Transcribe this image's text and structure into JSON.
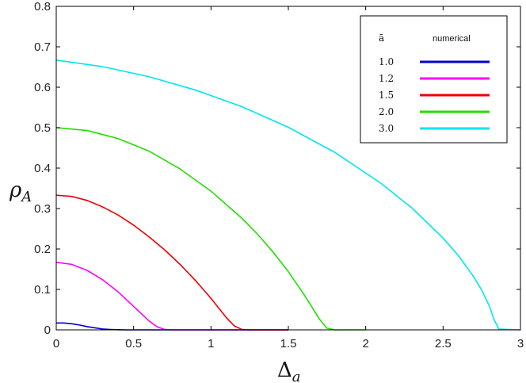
{
  "chart_data": {
    "type": "line",
    "xlabel_main": "Δ",
    "xlabel_sub": "a",
    "ylabel_main": "ρ",
    "ylabel_sub": "A",
    "xlim": [
      0,
      3
    ],
    "ylim": [
      0,
      0.8
    ],
    "xticks": [
      0,
      0.5,
      1,
      1.5,
      2,
      2.5,
      3
    ],
    "yticks": [
      0,
      0.1,
      0.2,
      0.3,
      0.4,
      0.5,
      0.6,
      0.7,
      0.8
    ],
    "x_tick_labels": [
      "0",
      "0.5",
      "1",
      "1.5",
      "2",
      "2.5",
      "3"
    ],
    "y_tick_labels": [
      "0",
      "0.1",
      "0.2",
      "0.3",
      "0.4",
      "0.5",
      "0.6",
      "0.7",
      "0.8"
    ],
    "grid": false,
    "legend": {
      "placement": "top-right",
      "header_param": "ā",
      "header_method": "numerical"
    },
    "series": [
      {
        "name": "1.0",
        "color": "#0000cc",
        "x": [
          0,
          0.05,
          0.1,
          0.15,
          0.2,
          0.25,
          0.3,
          0.35,
          0.4,
          0.45,
          0.5,
          0.6,
          0.8,
          1.0,
          1.5
        ],
        "y": [
          0.017,
          0.017,
          0.015,
          0.012,
          0.008,
          0.005,
          0.002,
          0.001,
          0.0003,
          0,
          0,
          0,
          0,
          0,
          0
        ]
      },
      {
        "name": "1.2",
        "color": "#ff00ff",
        "x": [
          0,
          0.1,
          0.2,
          0.3,
          0.4,
          0.5,
          0.55,
          0.6,
          0.65,
          0.7,
          0.75,
          0.8,
          1.0,
          1.5
        ],
        "y": [
          0.167,
          0.162,
          0.147,
          0.124,
          0.094,
          0.058,
          0.04,
          0.022,
          0.008,
          0.001,
          0,
          0,
          0,
          0
        ]
      },
      {
        "name": "1.5",
        "color": "#ee0000",
        "x": [
          0,
          0.1,
          0.2,
          0.3,
          0.4,
          0.5,
          0.6,
          0.7,
          0.8,
          0.9,
          1.0,
          1.05,
          1.1,
          1.15,
          1.2,
          1.25,
          1.5
        ],
        "y": [
          0.333,
          0.33,
          0.32,
          0.304,
          0.284,
          0.259,
          0.23,
          0.198,
          0.162,
          0.122,
          0.078,
          0.054,
          0.03,
          0.01,
          0.001,
          0,
          0
        ]
      },
      {
        "name": "2.0",
        "color": "#22dd00",
        "x": [
          0,
          0.2,
          0.4,
          0.6,
          0.8,
          1.0,
          1.2,
          1.3,
          1.4,
          1.5,
          1.6,
          1.65,
          1.7,
          1.75,
          1.8,
          2.0
        ],
        "y": [
          0.5,
          0.493,
          0.473,
          0.442,
          0.398,
          0.343,
          0.276,
          0.237,
          0.193,
          0.144,
          0.088,
          0.058,
          0.027,
          0.004,
          0,
          0
        ]
      },
      {
        "name": "3.0",
        "color": "#00e6ee",
        "x": [
          0,
          0.3,
          0.6,
          0.9,
          1.2,
          1.5,
          1.8,
          2.1,
          2.3,
          2.5,
          2.6,
          2.7,
          2.75,
          2.8,
          2.83,
          2.86,
          3.0
        ],
        "y": [
          0.667,
          0.651,
          0.626,
          0.593,
          0.552,
          0.501,
          0.439,
          0.362,
          0.301,
          0.227,
          0.183,
          0.13,
          0.098,
          0.058,
          0.025,
          0.002,
          0
        ]
      }
    ]
  }
}
